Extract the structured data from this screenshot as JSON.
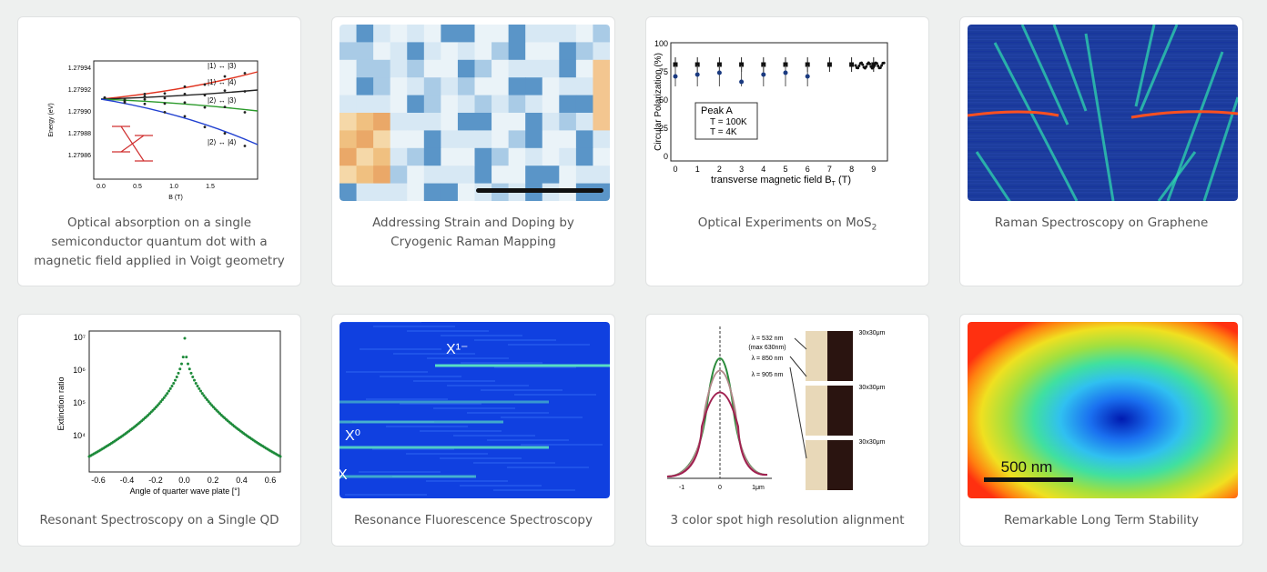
{
  "cards": [
    {
      "caption": "Optical absorption on a single semiconductor quantum dot with a magnetic field applied in Voigt geometry",
      "image": {
        "y_label": "Energy (eV)",
        "x_label": "B (T)",
        "y_ticks": [
          "1.27994",
          "1.27992",
          "1.27990",
          "1.27988",
          "1.27986"
        ],
        "x_ticks": [
          "0.0",
          "0.5",
          "1.0",
          "1.5"
        ],
        "curve_labels": [
          "|1⟩ ↔ |3⟩",
          "|1⟩ ↔ |4⟩",
          "|2⟩ ↔ |3⟩",
          "|2⟩ ↔ |4⟩"
        ]
      }
    },
    {
      "caption": "Addressing Strain and Doping by Cryogenic Raman Mapping",
      "image": {}
    },
    {
      "caption": "Optical Experiments on MoS",
      "caption_sub": "2",
      "image": {
        "y_label": "Circular Polarization (%)",
        "x_label": "transverse magnetic field B",
        "x_label_sub": "T",
        "x_label_unit": " (T)",
        "y_ticks": [
          "100",
          "75",
          "50",
          "25",
          "0"
        ],
        "x_ticks": [
          "0",
          "1",
          "2",
          "3",
          "4",
          "5",
          "6",
          "7",
          "8",
          "9"
        ],
        "legend_title": "Peak A",
        "legend_items": [
          "T = 100K",
          "T = 4K"
        ]
      }
    },
    {
      "caption": "Raman Spectroscopy on Graphene",
      "image": {}
    },
    {
      "caption": "Resonant Spectroscopy on a Single QD",
      "image": {
        "y_label": "Extinction ratio",
        "x_label": "Angle of quarter wave plate [°]",
        "y_ticks": [
          "10⁷",
          "10⁶",
          "10⁵",
          "10⁴"
        ],
        "x_ticks": [
          "-0.6",
          "-0.4",
          "-0.2",
          "0.0",
          "0.2",
          "0.4",
          "0.6"
        ]
      }
    },
    {
      "caption": "Resonance Fluorescence Spectroscopy",
      "image": {
        "labels": [
          "X¹⁻",
          "X⁰",
          "X"
        ]
      }
    },
    {
      "caption": "3 color spot high resolution alignment",
      "image": {
        "wavelengths": [
          "λ = 532 nm",
          "(max 630nm)",
          "λ = 850 nm",
          "λ = 905 nm"
        ],
        "x_ticks": [
          "-1",
          "0",
          "1μm"
        ],
        "size_labels": [
          "30x30μm",
          "30x30μm",
          "30x30μm"
        ]
      }
    },
    {
      "caption": "Remarkable Long Term Stability",
      "image": {
        "scale_label": "500 nm"
      }
    }
  ]
}
